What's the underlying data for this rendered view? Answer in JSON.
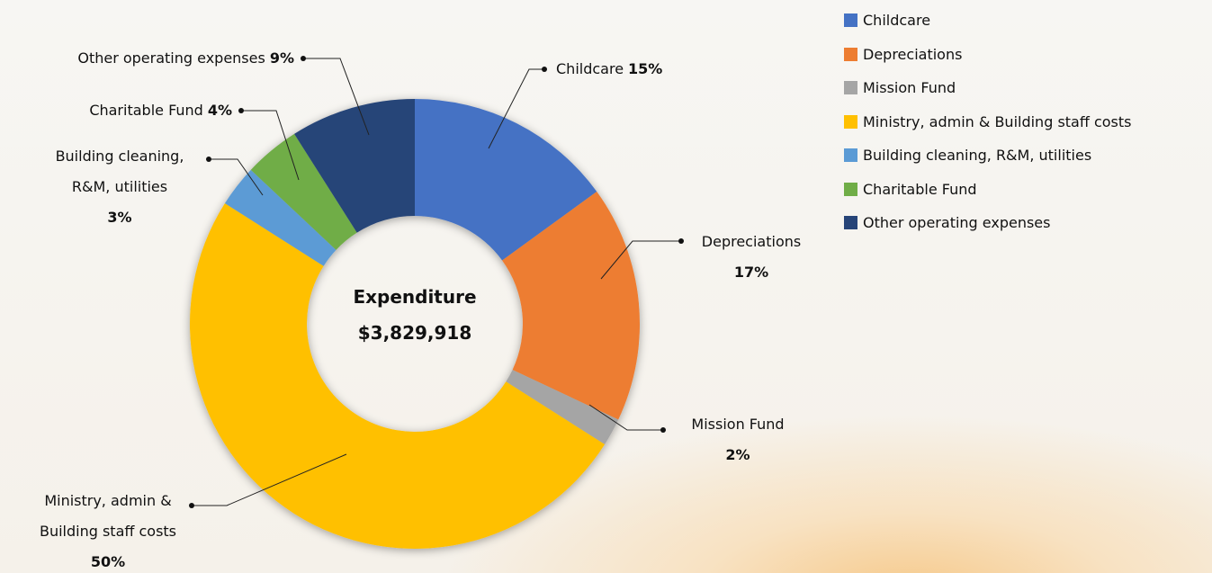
{
  "chart_data": {
    "type": "donut",
    "center_title": "Expenditure",
    "center_value": "$3,829,918",
    "categories": [
      "Childcare",
      "Depreciations",
      "Mission Fund",
      "Ministry, admin & Building staff costs",
      "Building cleaning, R&M, utilities",
      "Charitable Fund",
      "Other operating expenses"
    ],
    "values": [
      15,
      17,
      2,
      50,
      3,
      4,
      9
    ],
    "value_labels": [
      "15%",
      "17%",
      "2%",
      "50%",
      "3%",
      "4%",
      "9%"
    ],
    "colors": [
      "#4472c4",
      "#ed7d31",
      "#a5a5a5",
      "#ffc000",
      "#5b9bd5",
      "#70ad47",
      "#264478"
    ],
    "legend": "top-right"
  }
}
